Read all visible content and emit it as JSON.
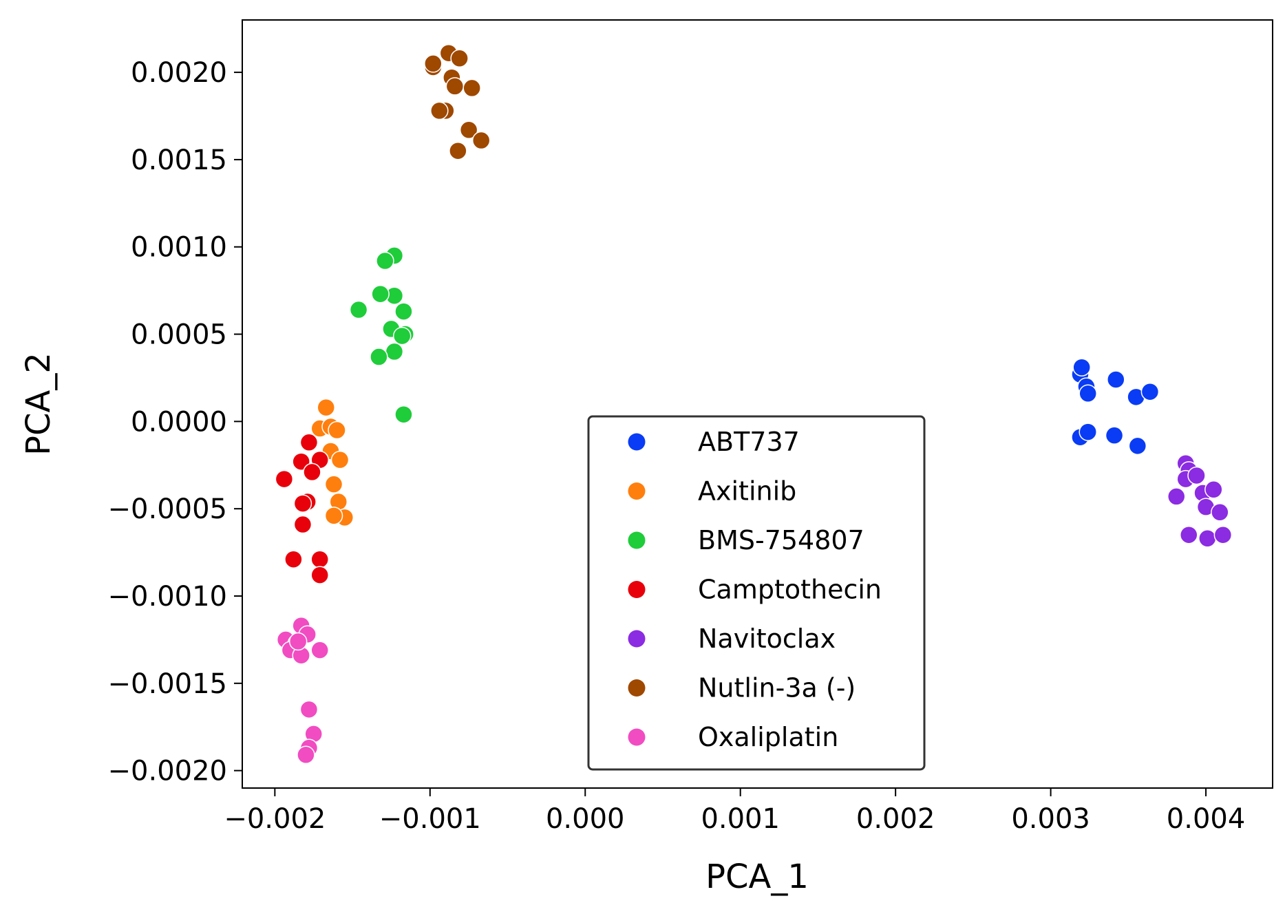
{
  "chart_data": {
    "type": "scatter",
    "title": "",
    "xlabel": "PCA_1",
    "ylabel": "PCA_2",
    "xlim": [
      -0.00221,
      0.00443
    ],
    "ylim": [
      -0.0021,
      0.0023
    ],
    "xticks": [
      {
        "value": -0.002,
        "label": "-0.002"
      },
      {
        "value": -0.001,
        "label": "-0.001"
      },
      {
        "value": 0.0,
        "label": "0.000"
      },
      {
        "value": 0.001,
        "label": "0.001"
      },
      {
        "value": 0.002,
        "label": "0.002"
      },
      {
        "value": 0.003,
        "label": "0.003"
      },
      {
        "value": 0.004,
        "label": "0.004"
      }
    ],
    "yticks": [
      {
        "value": 0.002,
        "label": "0.0020"
      },
      {
        "value": 0.0015,
        "label": "0.0015"
      },
      {
        "value": 0.001,
        "label": "0.0010"
      },
      {
        "value": 0.0005,
        "label": "0.0005"
      },
      {
        "value": 0.0,
        "label": "0.0000"
      },
      {
        "value": -0.0005,
        "label": "-0.0005"
      },
      {
        "value": -0.001,
        "label": "-0.0010"
      },
      {
        "value": -0.0015,
        "label": "-0.0015"
      },
      {
        "value": -0.002,
        "label": "-0.0020"
      }
    ],
    "grid": false,
    "legend_position": "lower-center",
    "series": [
      {
        "name": "ABT737",
        "color": "#0a3cf5",
        "points": [
          [
            0.00319,
            0.00027
          ],
          [
            0.0032,
            0.00031
          ],
          [
            0.00323,
            0.0002
          ],
          [
            0.00324,
            0.00016
          ],
          [
            0.00342,
            0.00024
          ],
          [
            0.00355,
            0.00014
          ],
          [
            0.00364,
            0.00017
          ],
          [
            0.00319,
            -9e-05
          ],
          [
            0.00324,
            -6e-05
          ],
          [
            0.00341,
            -8e-05
          ],
          [
            0.00356,
            -0.00014
          ]
        ]
      },
      {
        "name": "Axitinib",
        "color": "#ff7f0e",
        "points": [
          [
            -0.00167,
            8e-05
          ],
          [
            -0.00171,
            -4e-05
          ],
          [
            -0.00164,
            -3e-05
          ],
          [
            -0.0016,
            -5e-05
          ],
          [
            -0.00164,
            -0.00017
          ],
          [
            -0.00158,
            -0.00022
          ],
          [
            -0.00162,
            -0.00036
          ],
          [
            -0.00159,
            -0.00046
          ],
          [
            -0.00155,
            -0.00055
          ],
          [
            -0.00162,
            -0.00054
          ]
        ]
      },
      {
        "name": "BMS-754807",
        "color": "#1fcc3a",
        "points": [
          [
            -0.00123,
            0.00095
          ],
          [
            -0.00129,
            0.00092
          ],
          [
            -0.00123,
            0.00072
          ],
          [
            -0.00132,
            0.00073
          ],
          [
            -0.00146,
            0.00064
          ],
          [
            -0.00117,
            0.00063
          ],
          [
            -0.00125,
            0.00053
          ],
          [
            -0.00116,
            0.0005
          ],
          [
            -0.00118,
            0.00049
          ],
          [
            -0.00123,
            0.0004
          ],
          [
            -0.00133,
            0.00037
          ],
          [
            -0.00117,
            4e-05
          ]
        ]
      },
      {
        "name": "Camptothecin",
        "color": "#e8000b",
        "points": [
          [
            -0.00178,
            -0.00012
          ],
          [
            -0.00183,
            -0.00023
          ],
          [
            -0.00171,
            -0.00022
          ],
          [
            -0.00176,
            -0.00029
          ],
          [
            -0.00194,
            -0.00033
          ],
          [
            -0.00179,
            -0.00046
          ],
          [
            -0.00182,
            -0.00047
          ],
          [
            -0.00182,
            -0.00059
          ],
          [
            -0.00188,
            -0.00079
          ],
          [
            -0.00171,
            -0.00079
          ],
          [
            -0.00171,
            -0.00088
          ]
        ]
      },
      {
        "name": "Navitoclax",
        "color": "#8b2be2",
        "points": [
          [
            0.00387,
            -0.00024
          ],
          [
            0.00389,
            -0.00028
          ],
          [
            0.00387,
            -0.00033
          ],
          [
            0.00394,
            -0.00031
          ],
          [
            0.00381,
            -0.00043
          ],
          [
            0.00398,
            -0.00041
          ],
          [
            0.00405,
            -0.00039
          ],
          [
            0.004,
            -0.00049
          ],
          [
            0.00409,
            -0.00052
          ],
          [
            0.00389,
            -0.00065
          ],
          [
            0.00401,
            -0.00067
          ],
          [
            0.00411,
            -0.00065
          ]
        ]
      },
      {
        "name": "Nutlin-3a (-)",
        "color": "#9f4800",
        "points": [
          [
            -0.00098,
            0.00203
          ],
          [
            -0.00098,
            0.00205
          ],
          [
            -0.00088,
            0.00211
          ],
          [
            -0.00081,
            0.00208
          ],
          [
            -0.00086,
            0.00197
          ],
          [
            -0.00084,
            0.00192
          ],
          [
            -0.00073,
            0.00191
          ],
          [
            -0.0009,
            0.00178
          ],
          [
            -0.00094,
            0.00178
          ],
          [
            -0.00075,
            0.00167
          ],
          [
            -0.00067,
            0.00161
          ],
          [
            -0.00082,
            0.00155
          ]
        ]
      },
      {
        "name": "Oxaliplatin",
        "color": "#f14cc1",
        "points": [
          [
            -0.00183,
            -0.00117
          ],
          [
            -0.00179,
            -0.00122
          ],
          [
            -0.00193,
            -0.00125
          ],
          [
            -0.00186,
            -0.00127
          ],
          [
            -0.0019,
            -0.00131
          ],
          [
            -0.00183,
            -0.00134
          ],
          [
            -0.00171,
            -0.00131
          ],
          [
            -0.00185,
            -0.00126
          ],
          [
            -0.00178,
            -0.00165
          ],
          [
            -0.00175,
            -0.00179
          ],
          [
            -0.00178,
            -0.00187
          ],
          [
            -0.0018,
            -0.00191
          ]
        ]
      }
    ]
  }
}
